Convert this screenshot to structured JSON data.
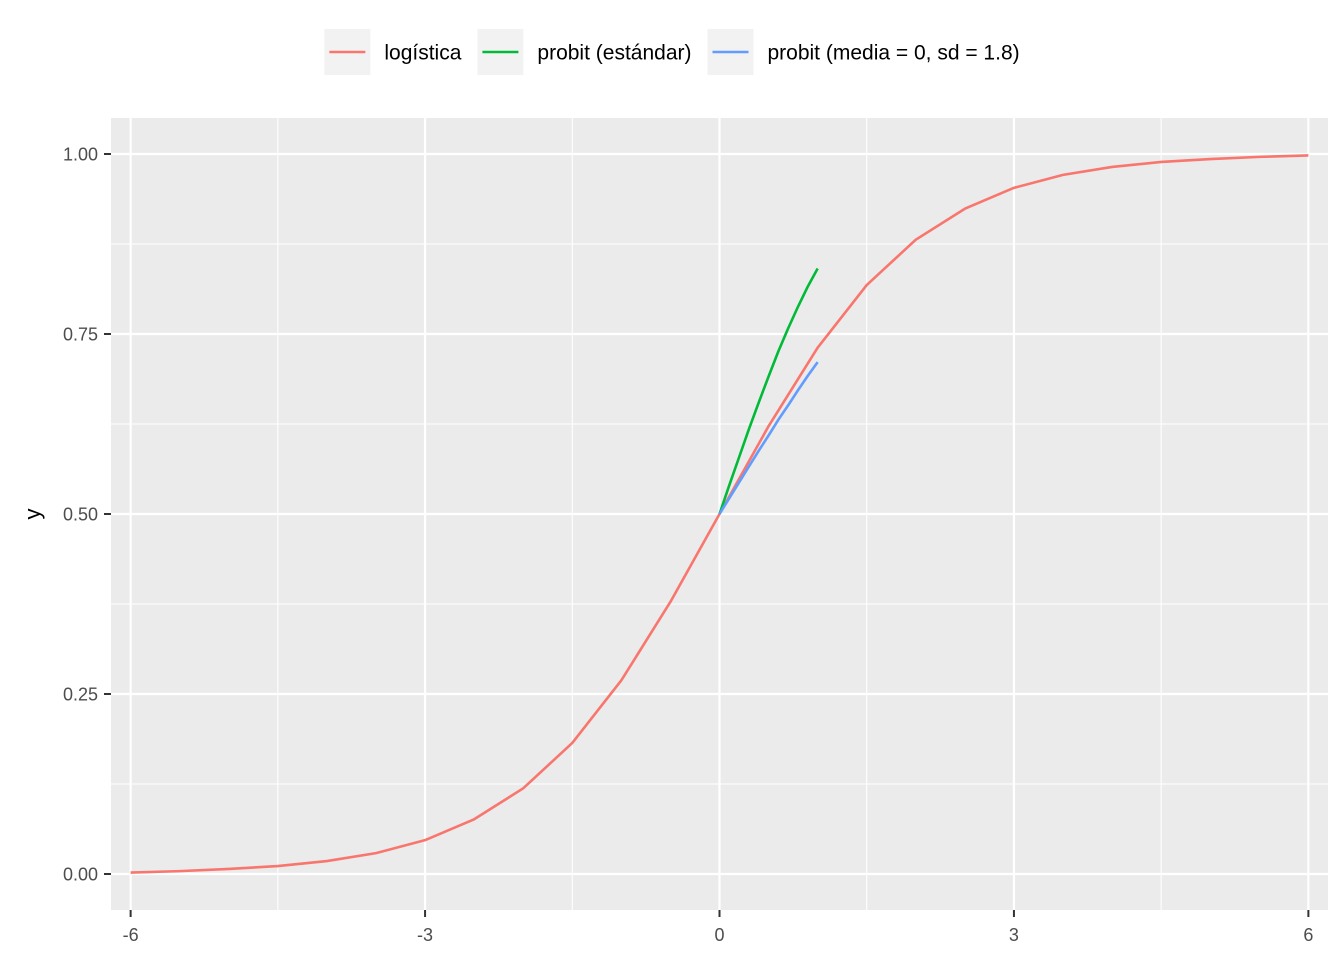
{
  "chart_data": {
    "type": "line",
    "title": "",
    "xlabel": "",
    "ylabel": "y",
    "xlim": [
      -6.2,
      6.2
    ],
    "ylim": [
      -0.05,
      1.05
    ],
    "x_ticks": [
      -6,
      -3,
      0,
      3,
      6
    ],
    "x_tick_labels": [
      "-6",
      "-3",
      "0",
      "3",
      "6"
    ],
    "y_ticks": [
      0,
      0.25,
      0.5,
      0.75,
      1
    ],
    "y_tick_labels": [
      "0.00",
      "0.25",
      "0.50",
      "0.75",
      "1.00"
    ],
    "grid": true,
    "legend_position": "top",
    "series": [
      {
        "name": "logística",
        "color": "#F8766D",
        "x": [
          -6,
          -5.5,
          -5,
          -4.5,
          -4,
          -3.5,
          -3,
          -2.5,
          -2,
          -1.5,
          -1,
          -0.5,
          0,
          0.5,
          1,
          1.5,
          2,
          2.5,
          3,
          3.5,
          4,
          4.5,
          5,
          5.5,
          6
        ],
        "y": [
          0.002,
          0.004,
          0.007,
          0.011,
          0.018,
          0.029,
          0.047,
          0.076,
          0.119,
          0.182,
          0.269,
          0.378,
          0.5,
          0.622,
          0.731,
          0.818,
          0.881,
          0.924,
          0.953,
          0.971,
          0.982,
          0.989,
          0.993,
          0.996,
          0.998
        ]
      },
      {
        "name": "probit (estándar)",
        "color": "#00BA38",
        "x": [
          0,
          0.1,
          0.2,
          0.3,
          0.4,
          0.5,
          0.6,
          0.7,
          0.8,
          0.9,
          1
        ],
        "y": [
          0.5,
          0.54,
          0.579,
          0.618,
          0.655,
          0.691,
          0.726,
          0.758,
          0.788,
          0.816,
          0.841
        ]
      },
      {
        "name": "probit (media = 0, sd = 1.8)",
        "color": "#619CFF",
        "x": [
          0,
          0.1,
          0.2,
          0.3,
          0.4,
          0.5,
          0.6,
          0.7,
          0.8,
          0.9,
          1
        ],
        "y": [
          0.5,
          0.522,
          0.544,
          0.566,
          0.588,
          0.609,
          0.631,
          0.651,
          0.672,
          0.692,
          0.711
        ]
      }
    ]
  }
}
